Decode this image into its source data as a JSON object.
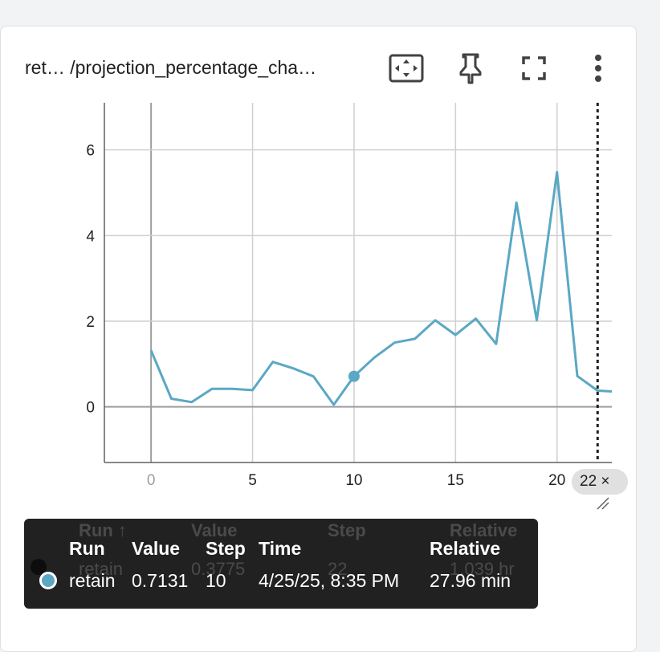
{
  "card": {
    "title": "ret… /projection_percentage_cha…",
    "icons": [
      "fit-domain-icon",
      "pin-icon",
      "fullscreen-icon",
      "more-vert-icon"
    ]
  },
  "chart_data": {
    "type": "line",
    "title": "",
    "xlabel": "",
    "ylabel": "",
    "xlim": [
      -2.3,
      22.7
    ],
    "ylim": [
      -1.3,
      7.1
    ],
    "x_ticks": [
      0,
      5,
      10,
      15,
      20
    ],
    "y_ticks": [
      0,
      2,
      4,
      6
    ],
    "x_tick_labels": [
      "0",
      "5",
      "10",
      "15",
      "20"
    ],
    "y_tick_labels": [
      "0",
      "2",
      "4",
      "6"
    ],
    "grid": true,
    "legend": "none",
    "series_color": "#5aa8c4",
    "series": [
      {
        "x": [
          0,
          1,
          2,
          3,
          4,
          5,
          6,
          7,
          8,
          9,
          10,
          11,
          12,
          13,
          14,
          15,
          16,
          17,
          18,
          19,
          20,
          21,
          22,
          23
        ],
        "y": [
          1.32,
          0.19,
          0.11,
          0.42,
          0.42,
          0.39,
          1.05,
          0.9,
          0.71,
          0.05,
          0.7131,
          1.15,
          1.5,
          1.59,
          2.02,
          1.68,
          2.06,
          1.47,
          4.77,
          2.02,
          5.48,
          0.72,
          0.3775,
          0.35
        ]
      }
    ],
    "hover_point": {
      "x": 10,
      "y": 0.7131
    },
    "cursor_step": 22,
    "cursor_chip_label": "22 ×"
  },
  "tooltip": {
    "headers": {
      "run": "Run",
      "value": "Value",
      "step": "Step",
      "time": "Time",
      "relative": "Relative"
    },
    "row": {
      "run": "retain",
      "value": "0.7131",
      "step": "10",
      "time": "4/25/25, 8:35 PM",
      "relative": "27.96 min"
    },
    "ghost_headers": {
      "run": "Run ↑",
      "value": "Value",
      "step": "Step",
      "relative": "Relative"
    },
    "ghost_row": {
      "run": "retain",
      "value": "0.3775",
      "step": "22",
      "relative": "1.039 hr"
    },
    "run_color": "#5aa8c4"
  }
}
